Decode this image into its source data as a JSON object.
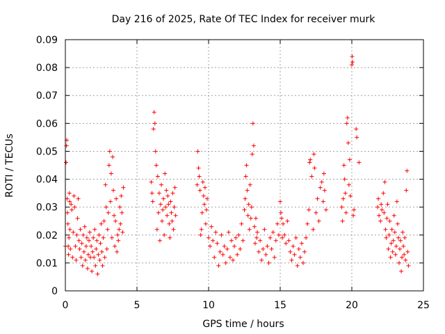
{
  "chart_data": {
    "type": "scatter",
    "title": "Day 216 of 2025, Rate Of TEC Index for receiver murk",
    "xlabel": "GPS time / hours",
    "ylabel": "ROTI / TECUs",
    "xlim": [
      0,
      25
    ],
    "ylim": [
      0,
      0.09
    ],
    "xticks": [
      "0",
      "5",
      "10",
      "15",
      "20",
      "25"
    ],
    "yticks": [
      "0",
      "0.01",
      "0.02",
      "0.03",
      "0.04",
      "0.05",
      "0.06",
      "0.07",
      "0.08",
      "0.09"
    ],
    "grid": true,
    "marker": "+",
    "color": "#ff0000",
    "series": [
      {
        "points": [
          [
            0.0,
            0.016
          ],
          [
            0.05,
            0.046
          ],
          [
            0.08,
            0.052
          ],
          [
            0.1,
            0.054
          ],
          [
            0.12,
            0.033
          ],
          [
            0.15,
            0.028
          ],
          [
            0.18,
            0.024
          ],
          [
            0.2,
            0.016
          ],
          [
            0.22,
            0.013
          ],
          [
            0.25,
            0.019
          ],
          [
            0.28,
            0.035
          ],
          [
            0.3,
            0.032
          ],
          [
            0.32,
            0.022
          ],
          [
            0.35,
            0.015
          ],
          [
            0.4,
            0.031
          ],
          [
            0.45,
            0.029
          ],
          [
            0.5,
            0.012
          ],
          [
            0.55,
            0.021
          ],
          [
            0.6,
            0.034
          ],
          [
            0.65,
            0.03
          ],
          [
            0.7,
            0.016
          ],
          [
            0.75,
            0.011
          ],
          [
            0.8,
            0.02
          ],
          [
            0.85,
            0.026
          ],
          [
            0.9,
            0.033
          ],
          [
            0.95,
            0.018
          ],
          [
            1.0,
            0.015
          ],
          [
            1.05,
            0.022
          ],
          [
            1.1,
            0.012
          ],
          [
            1.15,
            0.017
          ],
          [
            1.2,
            0.009
          ],
          [
            1.25,
            0.02
          ],
          [
            1.3,
            0.014
          ],
          [
            1.35,
            0.023
          ],
          [
            1.4,
            0.011
          ],
          [
            1.45,
            0.016
          ],
          [
            1.5,
            0.019
          ],
          [
            1.55,
            0.008
          ],
          [
            1.6,
            0.013
          ],
          [
            1.65,
            0.018
          ],
          [
            1.7,
            0.021
          ],
          [
            1.75,
            0.012
          ],
          [
            1.8,
            0.016
          ],
          [
            1.85,
            0.007
          ],
          [
            1.9,
            0.014
          ],
          [
            1.95,
            0.019
          ],
          [
            2.0,
            0.012
          ],
          [
            2.05,
            0.022
          ],
          [
            2.1,
            0.009
          ],
          [
            2.15,
            0.015
          ],
          [
            2.2,
            0.018
          ],
          [
            2.25,
            0.006
          ],
          [
            2.3,
            0.013
          ],
          [
            2.35,
            0.02
          ],
          [
            2.4,
            0.011
          ],
          [
            2.45,
            0.017
          ],
          [
            2.5,
            0.024
          ],
          [
            2.55,
            0.014
          ],
          [
            2.6,
            0.009
          ],
          [
            2.65,
            0.019
          ],
          [
            2.7,
            0.025
          ],
          [
            2.75,
            0.012
          ],
          [
            2.8,
            0.038
          ],
          [
            2.85,
            0.03
          ],
          [
            2.9,
            0.015
          ],
          [
            2.95,
            0.022
          ],
          [
            3.0,
            0.028
          ],
          [
            3.05,
            0.045
          ],
          [
            3.1,
            0.05
          ],
          [
            3.15,
            0.032
          ],
          [
            3.2,
            0.042
          ],
          [
            3.25,
            0.019
          ],
          [
            3.3,
            0.048
          ],
          [
            3.35,
            0.036
          ],
          [
            3.4,
            0.027
          ],
          [
            3.45,
            0.016
          ],
          [
            3.5,
            0.025
          ],
          [
            3.55,
            0.033
          ],
          [
            3.6,
            0.014
          ],
          [
            3.65,
            0.02
          ],
          [
            3.7,
            0.018
          ],
          [
            3.75,
            0.022
          ],
          [
            3.8,
            0.03
          ],
          [
            3.85,
            0.024
          ],
          [
            3.9,
            0.034
          ],
          [
            3.95,
            0.028
          ],
          [
            4.0,
            0.021
          ],
          [
            4.05,
            0.037
          ],
          [
            6.0,
            0.039
          ],
          [
            6.05,
            0.035
          ],
          [
            6.1,
            0.032
          ],
          [
            6.15,
            0.058
          ],
          [
            6.2,
            0.064
          ],
          [
            6.25,
            0.06
          ],
          [
            6.3,
            0.05
          ],
          [
            6.35,
            0.045
          ],
          [
            6.4,
            0.022
          ],
          [
            6.45,
            0.041
          ],
          [
            6.5,
            0.028
          ],
          [
            6.55,
            0.035
          ],
          [
            6.6,
            0.018
          ],
          [
            6.65,
            0.031
          ],
          [
            6.7,
            0.038
          ],
          [
            6.75,
            0.025
          ],
          [
            6.8,
            0.029
          ],
          [
            6.85,
            0.033
          ],
          [
            6.9,
            0.02
          ],
          [
            6.95,
            0.042
          ],
          [
            7.0,
            0.03
          ],
          [
            7.05,
            0.036
          ],
          [
            7.1,
            0.027
          ],
          [
            7.15,
            0.034
          ],
          [
            7.2,
            0.031
          ],
          [
            7.25,
            0.024
          ],
          [
            7.3,
            0.019
          ],
          [
            7.35,
            0.032
          ],
          [
            7.4,
            0.028
          ],
          [
            7.45,
            0.025
          ],
          [
            7.5,
            0.035
          ],
          [
            7.55,
            0.022
          ],
          [
            7.6,
            0.03
          ],
          [
            7.65,
            0.037
          ],
          [
            7.7,
            0.027
          ],
          [
            9.2,
            0.038
          ],
          [
            9.25,
            0.05
          ],
          [
            9.3,
            0.044
          ],
          [
            9.35,
            0.041
          ],
          [
            9.4,
            0.036
          ],
          [
            9.45,
            0.02
          ],
          [
            9.5,
            0.022
          ],
          [
            9.55,
            0.028
          ],
          [
            9.6,
            0.039
          ],
          [
            9.65,
            0.034
          ],
          [
            9.7,
            0.031
          ],
          [
            9.75,
            0.037
          ],
          [
            9.8,
            0.024
          ],
          [
            9.85,
            0.029
          ],
          [
            9.9,
            0.033
          ],
          [
            10.0,
            0.019
          ],
          [
            10.1,
            0.016
          ],
          [
            10.2,
            0.023
          ],
          [
            10.3,
            0.018
          ],
          [
            10.4,
            0.012
          ],
          [
            10.5,
            0.021
          ],
          [
            10.6,
            0.017
          ],
          [
            10.7,
            0.009
          ],
          [
            10.8,
            0.014
          ],
          [
            10.9,
            0.02
          ],
          [
            11.0,
            0.013
          ],
          [
            11.1,
            0.016
          ],
          [
            11.2,
            0.01
          ],
          [
            11.3,
            0.015
          ],
          [
            11.4,
            0.021
          ],
          [
            11.5,
            0.012
          ],
          [
            11.6,
            0.018
          ],
          [
            11.7,
            0.011
          ],
          [
            11.8,
            0.016
          ],
          [
            11.9,
            0.019
          ],
          [
            12.0,
            0.013
          ],
          [
            12.1,
            0.02
          ],
          [
            12.2,
            0.015
          ],
          [
            12.3,
            0.024
          ],
          [
            12.4,
            0.018
          ],
          [
            12.5,
            0.029
          ],
          [
            12.55,
            0.033
          ],
          [
            12.6,
            0.041
          ],
          [
            12.65,
            0.045
          ],
          [
            12.7,
            0.036
          ],
          [
            12.75,
            0.027
          ],
          [
            12.8,
            0.031
          ],
          [
            12.85,
            0.022
          ],
          [
            12.9,
            0.038
          ],
          [
            12.95,
            0.026
          ],
          [
            13.0,
            0.03
          ],
          [
            13.05,
            0.049
          ],
          [
            13.1,
            0.06
          ],
          [
            13.15,
            0.052
          ],
          [
            13.2,
            0.023
          ],
          [
            13.25,
            0.017
          ],
          [
            13.3,
            0.026
          ],
          [
            13.35,
            0.019
          ],
          [
            13.4,
            0.021
          ],
          [
            13.5,
            0.014
          ],
          [
            13.6,
            0.018
          ],
          [
            13.7,
            0.011
          ],
          [
            13.8,
            0.015
          ],
          [
            13.9,
            0.022
          ],
          [
            14.0,
            0.013
          ],
          [
            14.1,
            0.016
          ],
          [
            14.2,
            0.01
          ],
          [
            14.3,
            0.019
          ],
          [
            14.4,
            0.015
          ],
          [
            14.5,
            0.021
          ],
          [
            14.6,
            0.012
          ],
          [
            14.7,
            0.018
          ],
          [
            14.8,
            0.024
          ],
          [
            14.9,
            0.02
          ],
          [
            15.0,
            0.032
          ],
          [
            15.05,
            0.028
          ],
          [
            15.1,
            0.026
          ],
          [
            15.15,
            0.019
          ],
          [
            15.2,
            0.024
          ],
          [
            15.3,
            0.02
          ],
          [
            15.4,
            0.017
          ],
          [
            15.5,
            0.025
          ],
          [
            15.6,
            0.018
          ],
          [
            15.7,
            0.014
          ],
          [
            15.8,
            0.011
          ],
          [
            15.9,
            0.016
          ],
          [
            16.0,
            0.013
          ],
          [
            16.1,
            0.019
          ],
          [
            16.2,
            0.009
          ],
          [
            16.3,
            0.015
          ],
          [
            16.4,
            0.012
          ],
          [
            16.5,
            0.017
          ],
          [
            16.6,
            0.01
          ],
          [
            16.7,
            0.014
          ],
          [
            16.8,
            0.019
          ],
          [
            16.9,
            0.024
          ],
          [
            17.0,
            0.029
          ],
          [
            17.05,
            0.046
          ],
          [
            17.1,
            0.047
          ],
          [
            17.2,
            0.041
          ],
          [
            17.3,
            0.022
          ],
          [
            17.35,
            0.049
          ],
          [
            17.4,
            0.044
          ],
          [
            17.5,
            0.028
          ],
          [
            17.6,
            0.033
          ],
          [
            17.7,
            0.025
          ],
          [
            17.8,
            0.037
          ],
          [
            17.9,
            0.039
          ],
          [
            18.0,
            0.032
          ],
          [
            18.05,
            0.042
          ],
          [
            18.1,
            0.036
          ],
          [
            18.2,
            0.029
          ],
          [
            19.3,
            0.03
          ],
          [
            19.35,
            0.025
          ],
          [
            19.4,
            0.033
          ],
          [
            19.45,
            0.045
          ],
          [
            19.5,
            0.04
          ],
          [
            19.55,
            0.035
          ],
          [
            19.6,
            0.028
          ],
          [
            19.65,
            0.06
          ],
          [
            19.7,
            0.062
          ],
          [
            19.75,
            0.053
          ],
          [
            19.8,
            0.038
          ],
          [
            19.85,
            0.047
          ],
          [
            19.9,
            0.034
          ],
          [
            20.0,
            0.081
          ],
          [
            20.02,
            0.084
          ],
          [
            20.05,
            0.082
          ],
          [
            20.1,
            0.027
          ],
          [
            20.15,
            0.029
          ],
          [
            20.3,
            0.058
          ],
          [
            20.35,
            0.055
          ],
          [
            20.5,
            0.046
          ],
          [
            21.8,
            0.03
          ],
          [
            21.85,
            0.033
          ],
          [
            21.9,
            0.027
          ],
          [
            22.0,
            0.025
          ],
          [
            22.05,
            0.031
          ],
          [
            22.1,
            0.029
          ],
          [
            22.2,
            0.035
          ],
          [
            22.25,
            0.028
          ],
          [
            22.3,
            0.039
          ],
          [
            22.35,
            0.022
          ],
          [
            22.4,
            0.019
          ],
          [
            22.45,
            0.026
          ],
          [
            22.5,
            0.031
          ],
          [
            22.55,
            0.015
          ],
          [
            22.6,
            0.02
          ],
          [
            22.65,
            0.025
          ],
          [
            22.7,
            0.012
          ],
          [
            22.75,
            0.017
          ],
          [
            22.8,
            0.022
          ],
          [
            22.85,
            0.014
          ],
          [
            22.9,
            0.018
          ],
          [
            22.95,
            0.027
          ],
          [
            23.0,
            0.021
          ],
          [
            23.05,
            0.013
          ],
          [
            23.1,
            0.016
          ],
          [
            23.15,
            0.032
          ],
          [
            23.2,
            0.024
          ],
          [
            23.25,
            0.019
          ],
          [
            23.3,
            0.01
          ],
          [
            23.35,
            0.015
          ],
          [
            23.4,
            0.018
          ],
          [
            23.45,
            0.007
          ],
          [
            23.5,
            0.012
          ],
          [
            23.55,
            0.021
          ],
          [
            23.6,
            0.016
          ],
          [
            23.65,
            0.013
          ],
          [
            23.7,
            0.019
          ],
          [
            23.75,
            0.011
          ],
          [
            23.8,
            0.036
          ],
          [
            23.85,
            0.043
          ],
          [
            23.9,
            0.014
          ],
          [
            23.95,
            0.009
          ]
        ]
      }
    ]
  }
}
